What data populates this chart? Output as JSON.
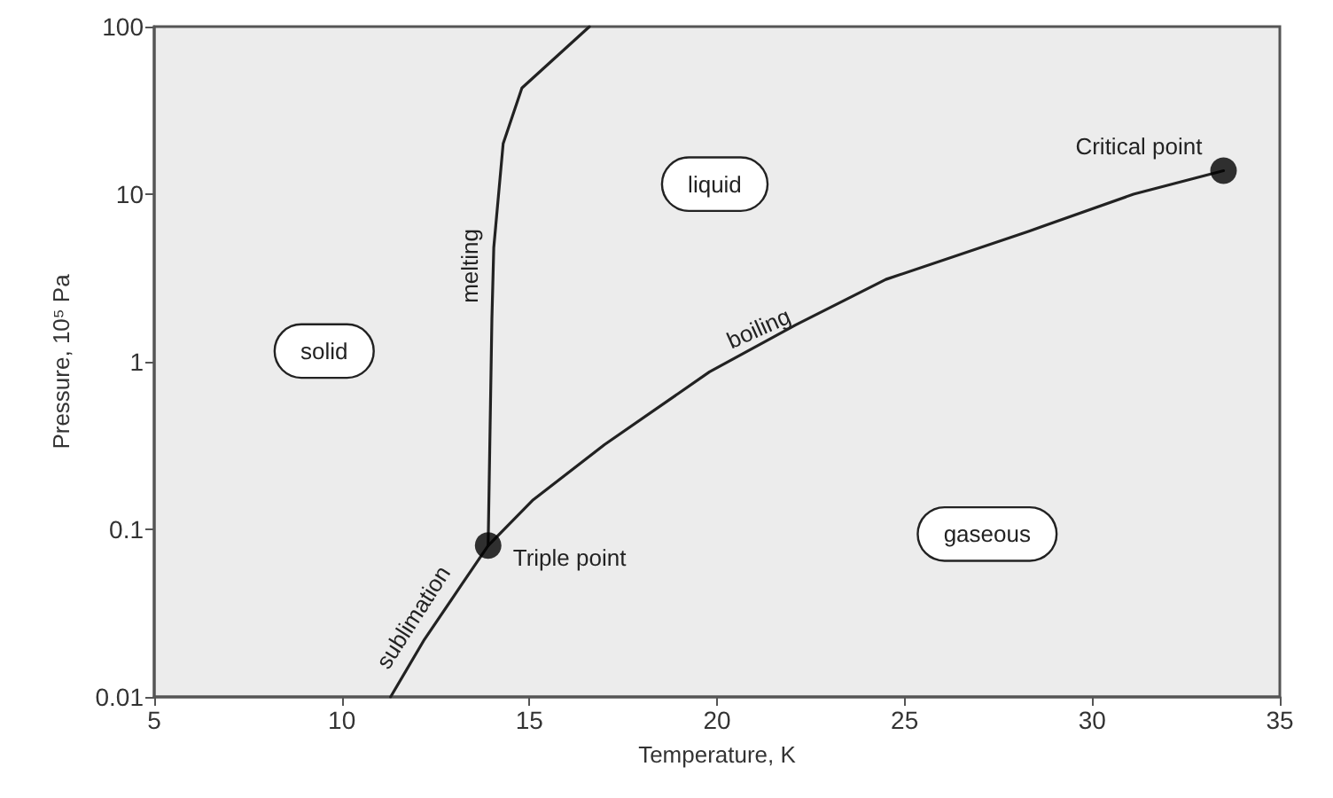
{
  "chart_data": {
    "type": "line",
    "xlabel": "Temperature, K",
    "ylabel": "Pressure, 10⁵ Pa",
    "xlim": [
      5,
      35
    ],
    "xticks": [
      5,
      10,
      15,
      20,
      25,
      30,
      35
    ],
    "ylim": [
      0.01,
      100
    ],
    "yticks": [
      0.01,
      0.1,
      1,
      10,
      100
    ],
    "log": "y",
    "grid": false,
    "line_style": "solid",
    "marker": "none",
    "series": [
      {
        "color": "#222222",
        "x": [
          13.9,
          14.0,
          14.05,
          14.3,
          14.8,
          16.6
        ],
        "values": [
          0.08,
          1.8,
          4.8,
          20,
          43,
          100
        ]
      },
      {
        "color": "#222222",
        "x": [
          11.3,
          12.2,
          13.2,
          13.9
        ],
        "values": [
          0.01,
          0.022,
          0.047,
          0.08
        ]
      },
      {
        "color": "#222222",
        "x": [
          13.9,
          15.1,
          17.0,
          19.8,
          22.1,
          24.5,
          28.3,
          31.1,
          33.5
        ],
        "values": [
          0.08,
          0.15,
          0.32,
          0.87,
          1.66,
          3.1,
          6.0,
          10,
          13.8
        ]
      },
      {
        "type": "scatter",
        "marker": "circle",
        "color": "#000000",
        "x": [
          13.9,
          33.5
        ],
        "values": [
          0.08,
          13.8
        ]
      }
    ],
    "annotations": [
      "solid",
      "liquid",
      "gaseous",
      "melting",
      "boiling",
      "sublimation",
      {
        "text": "Triple point",
        "x": 13.9,
        "y": 0.08
      },
      {
        "text": "Critical point",
        "x": 33.5,
        "y": 13.8
      }
    ]
  }
}
